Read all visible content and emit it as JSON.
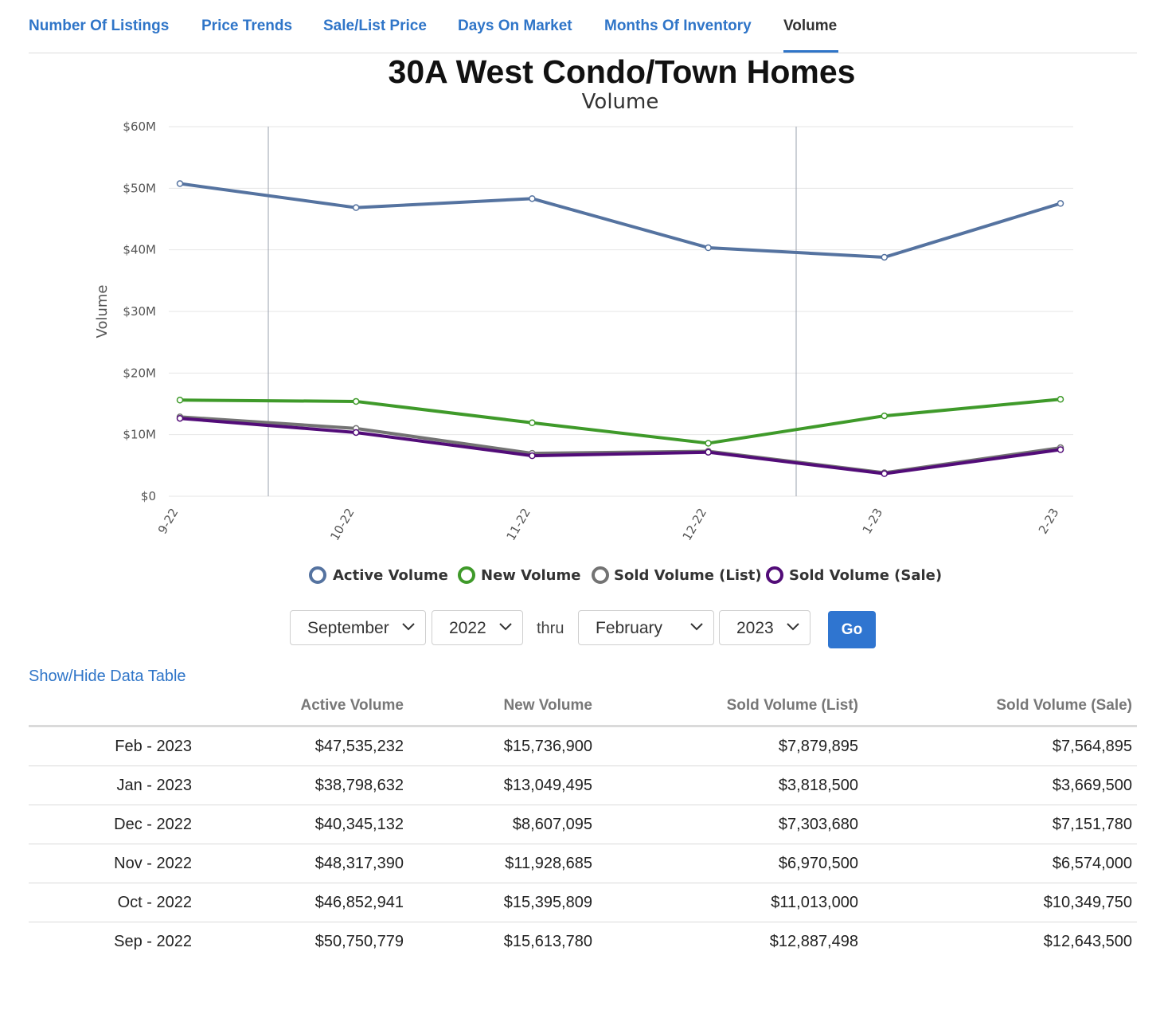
{
  "tabs": [
    {
      "label": "Number Of Listings",
      "active": false
    },
    {
      "label": "Price Trends",
      "active": false
    },
    {
      "label": "Sale/List Price",
      "active": false
    },
    {
      "label": "Days On Market",
      "active": false
    },
    {
      "label": "Months Of Inventory",
      "active": false
    },
    {
      "label": "Volume",
      "active": true
    }
  ],
  "colors": {
    "link": "#2f75c8",
    "active_volume": "#5573a0",
    "new_volume": "#3f9a2a",
    "sold_list": "#737373",
    "sold_sale": "#520c78"
  },
  "chart_data": {
    "type": "line",
    "title": "30A West Condo/Town Homes",
    "subtitle": "Volume",
    "ylabel": "Volume",
    "xlabel": "",
    "categories": [
      "9-22",
      "10-22",
      "11-22",
      "12-22",
      "1-23",
      "2-23"
    ],
    "ylim": [
      0,
      60000000
    ],
    "yticks": [
      {
        "value": 0,
        "label": "$0"
      },
      {
        "value": 10000000,
        "label": "$10M"
      },
      {
        "value": 20000000,
        "label": "$20M"
      },
      {
        "value": 30000000,
        "label": "$30M"
      },
      {
        "value": 40000000,
        "label": "$40M"
      },
      {
        "value": 50000000,
        "label": "$50M"
      },
      {
        "value": 60000000,
        "label": "$60M"
      }
    ],
    "grid": true,
    "legend_position": "bottom-center",
    "series": [
      {
        "name": "Active Volume",
        "color": "#5573a0",
        "values": [
          50750779,
          46852941,
          48317390,
          40345132,
          38798632,
          47535232
        ]
      },
      {
        "name": "New Volume",
        "color": "#3f9a2a",
        "values": [
          15613780,
          15395809,
          11928685,
          8607095,
          13049495,
          15736900
        ]
      },
      {
        "name": "Sold Volume (List)",
        "color": "#737373",
        "values": [
          12887498,
          11013000,
          6970500,
          7303680,
          3818500,
          7879895
        ]
      },
      {
        "name": "Sold Volume (Sale)",
        "color": "#520c78",
        "values": [
          12643500,
          10349750,
          6574000,
          7151780,
          3669500,
          7564895
        ]
      }
    ]
  },
  "controls": {
    "start_month": "September",
    "start_year": "2022",
    "thru_label": "thru",
    "end_month": "February",
    "end_year": "2023",
    "go_label": "Go"
  },
  "toggle_label": "Show/Hide Data Table",
  "table": {
    "headers": [
      "",
      "Active Volume",
      "New Volume",
      "Sold Volume (List)",
      "Sold Volume (Sale)"
    ],
    "rows": [
      [
        "Feb - 2023",
        "$47,535,232",
        "$15,736,900",
        "$7,879,895",
        "$7,564,895"
      ],
      [
        "Jan - 2023",
        "$38,798,632",
        "$13,049,495",
        "$3,818,500",
        "$3,669,500"
      ],
      [
        "Dec - 2022",
        "$40,345,132",
        "$8,607,095",
        "$7,303,680",
        "$7,151,780"
      ],
      [
        "Nov - 2022",
        "$48,317,390",
        "$11,928,685",
        "$6,970,500",
        "$6,574,000"
      ],
      [
        "Oct - 2022",
        "$46,852,941",
        "$15,395,809",
        "$11,013,000",
        "$10,349,750"
      ],
      [
        "Sep - 2022",
        "$50,750,779",
        "$15,613,780",
        "$12,887,498",
        "$12,643,500"
      ]
    ]
  }
}
